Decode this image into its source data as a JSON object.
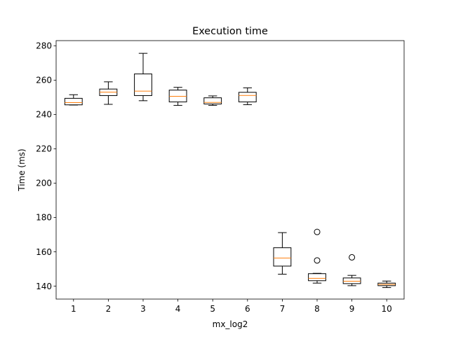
{
  "chart_data": {
    "type": "box",
    "title": "Execution time",
    "xlabel": "mx_log2",
    "ylabel": "Time (ms)",
    "categories": [
      "1",
      "2",
      "3",
      "4",
      "5",
      "6",
      "7",
      "8",
      "9",
      "10"
    ],
    "ylim": [
      132.5,
      283.0
    ],
    "yticks": [
      140,
      160,
      180,
      200,
      220,
      240,
      260,
      280
    ],
    "grid": false,
    "box_color": "#000000",
    "median_color": "#ff7f0e",
    "boxes": [
      {
        "label": "1",
        "whisker_low": 245.5,
        "q1": 245.6,
        "median": 246.9,
        "q3": 249.4,
        "whisker_high": 251.5,
        "fliers": []
      },
      {
        "label": "2",
        "whisker_low": 245.9,
        "q1": 251.0,
        "median": 253.0,
        "q3": 254.8,
        "whisker_high": 259.0,
        "fliers": []
      },
      {
        "label": "3",
        "whisker_low": 248.0,
        "q1": 251.0,
        "median": 253.6,
        "q3": 263.6,
        "whisker_high": 275.6,
        "fliers": []
      },
      {
        "label": "4",
        "whisker_low": 245.3,
        "q1": 247.3,
        "median": 250.6,
        "q3": 254.2,
        "whisker_high": 255.8,
        "fliers": []
      },
      {
        "label": "5",
        "whisker_low": 245.3,
        "q1": 246.1,
        "median": 247.0,
        "q3": 249.7,
        "whisker_high": 250.8,
        "fliers": []
      },
      {
        "label": "6",
        "whisker_low": 245.7,
        "q1": 247.3,
        "median": 251.1,
        "q3": 252.9,
        "whisker_high": 255.5,
        "fliers": []
      },
      {
        "label": "7",
        "whisker_low": 147.0,
        "q1": 151.7,
        "median": 156.4,
        "q3": 162.4,
        "whisker_high": 171.2,
        "fliers": []
      },
      {
        "label": "8",
        "whisker_low": 141.8,
        "q1": 143.2,
        "median": 144.6,
        "q3": 147.3,
        "whisker_high": 147.5,
        "fliers": [
          155.0,
          171.6
        ]
      },
      {
        "label": "9",
        "whisker_low": 140.3,
        "q1": 141.5,
        "median": 142.9,
        "q3": 144.8,
        "whisker_high": 146.3,
        "fliers": [
          156.8
        ]
      },
      {
        "label": "10",
        "whisker_low": 139.2,
        "q1": 140.3,
        "median": 141.0,
        "q3": 141.8,
        "whisker_high": 143.0,
        "fliers": []
      }
    ]
  }
}
